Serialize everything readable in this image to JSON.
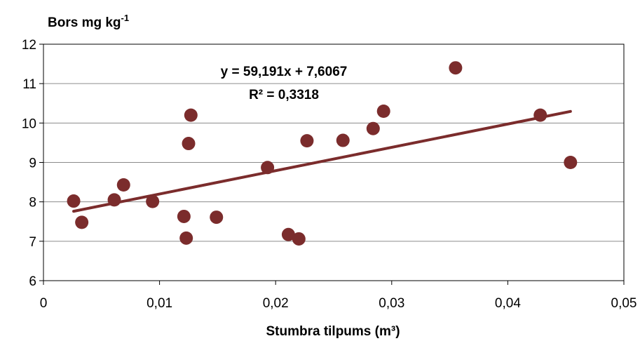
{
  "chart_data": {
    "type": "scatter",
    "ylabel": "Bors mg kg",
    "ylabel_sup": "-1",
    "xlabel": "Stumbra tilpums (m³)",
    "xlim": [
      0,
      0.05
    ],
    "ylim": [
      6,
      12
    ],
    "x_ticks": [
      0,
      0.01,
      0.02,
      0.03,
      0.04,
      0.05
    ],
    "x_tick_labels": [
      "0",
      "0,01",
      "0,02",
      "0,03",
      "0,04",
      "0,05"
    ],
    "y_ticks": [
      6,
      7,
      8,
      9,
      10,
      11,
      12
    ],
    "y_tick_labels": [
      "6",
      "7",
      "8",
      "9",
      "10",
      "11",
      "12"
    ],
    "grid": true,
    "point_color": "#7b2c2c",
    "trend_color": "#7b2c2c",
    "points": [
      {
        "x": 0.0026,
        "y": 8.02
      },
      {
        "x": 0.0033,
        "y": 7.48
      },
      {
        "x": 0.0061,
        "y": 8.05
      },
      {
        "x": 0.0069,
        "y": 8.43
      },
      {
        "x": 0.0094,
        "y": 8.01
      },
      {
        "x": 0.0121,
        "y": 7.63
      },
      {
        "x": 0.0123,
        "y": 7.08
      },
      {
        "x": 0.0125,
        "y": 9.48
      },
      {
        "x": 0.0127,
        "y": 10.2
      },
      {
        "x": 0.0149,
        "y": 7.61
      },
      {
        "x": 0.0193,
        "y": 8.87
      },
      {
        "x": 0.0211,
        "y": 7.17
      },
      {
        "x": 0.022,
        "y": 7.06
      },
      {
        "x": 0.0227,
        "y": 9.55
      },
      {
        "x": 0.0258,
        "y": 9.56
      },
      {
        "x": 0.0284,
        "y": 9.86
      },
      {
        "x": 0.0293,
        "y": 10.3
      },
      {
        "x": 0.0355,
        "y": 11.4
      },
      {
        "x": 0.0428,
        "y": 10.2
      },
      {
        "x": 0.0454,
        "y": 9.0
      }
    ],
    "trendline": {
      "slope": 59.191,
      "intercept": 7.6067,
      "x_range": [
        0.0026,
        0.0454
      ]
    },
    "equation_text": "y = 59,191x + 7,6067",
    "r2_text": "R² = 0,3318"
  }
}
